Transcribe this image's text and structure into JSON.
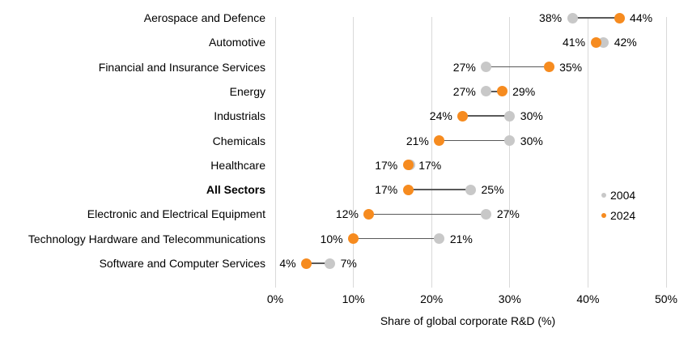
{
  "chart_data": {
    "type": "scatter",
    "variant": "dumbbell-dot-plot",
    "title": "",
    "xlabel": "Share of global corporate R&D (%)",
    "ylabel": "",
    "xlim": [
      0,
      50
    ],
    "x_ticks": [
      "0%",
      "10%",
      "20%",
      "30%",
      "40%",
      "50%"
    ],
    "x_tick_values": [
      0,
      10,
      20,
      30,
      40,
      50
    ],
    "grid": "vertical-only",
    "value_label_format": "{v}%",
    "categories": [
      "Aerospace and Defence",
      "Automotive",
      "Financial and Insurance Services",
      "Energy",
      "Industrials",
      "Chemicals",
      "Healthcare",
      "All Sectors",
      "Electronic and Electrical Equipment",
      "Technology Hardware and Telecommunications",
      "Software and Computer Services"
    ],
    "bold_categories": [
      "All Sectors"
    ],
    "series": [
      {
        "name": "2004",
        "color": "#C8C8C8",
        "values": [
          38,
          42,
          27,
          27,
          30,
          30,
          17,
          25,
          27,
          21,
          7
        ]
      },
      {
        "name": "2024",
        "color": "#F68B1F",
        "values": [
          44,
          41,
          35,
          29,
          24,
          21,
          17,
          17,
          12,
          10,
          4
        ]
      }
    ],
    "legend": {
      "position": "right",
      "entries": [
        {
          "label": "2004",
          "color": "#C8C8C8"
        },
        {
          "label": "2024",
          "color": "#F68B1F"
        }
      ]
    }
  },
  "colors": {
    "background": "#FFFFFF",
    "gridline": "#D9D9D9",
    "connector": "#595959",
    "text": "#000000"
  }
}
